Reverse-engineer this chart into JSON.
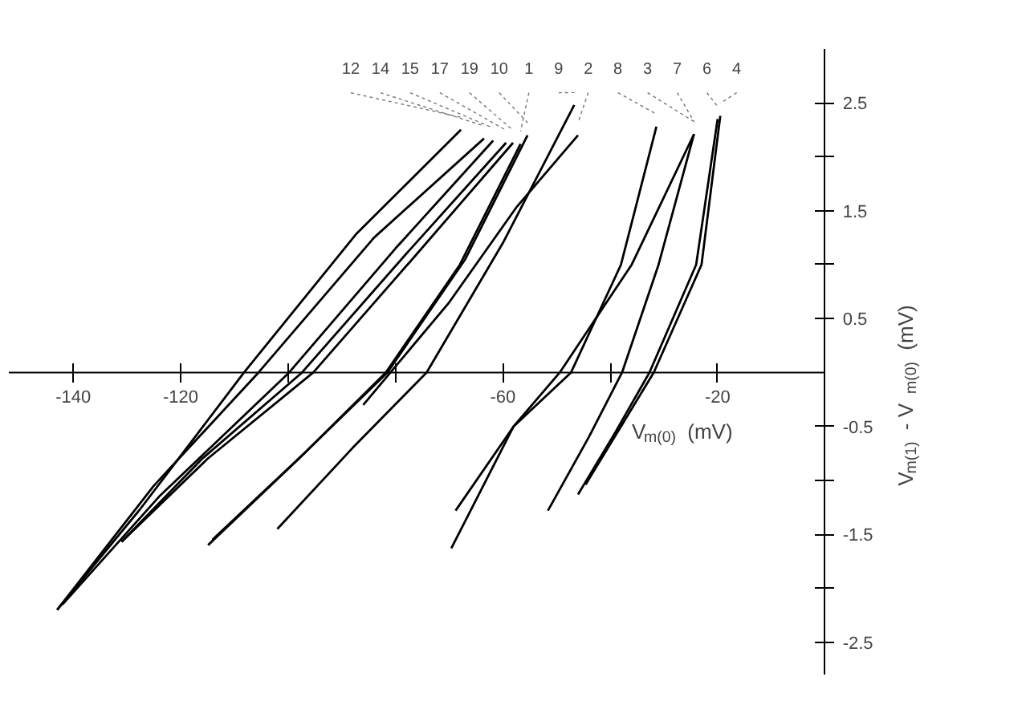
{
  "chart_data": {
    "type": "line",
    "xlabel": "V$_{m(0)}$ (mV)",
    "ylabel": "V$_{m(1)}$ - V$_{m(0)}$ (mV)",
    "xlim": [
      -152,
      0
    ],
    "ylim": [
      -2.8,
      3.0
    ],
    "xticks": [
      -140,
      -120,
      {
        "value": -100,
        "label": null
      },
      {
        "value": -80,
        "label": null
      },
      -60,
      {
        "value": -40,
        "label": null
      },
      -20
    ],
    "yticks": [
      {
        "value": -2.5,
        "label": "-2.5"
      },
      {
        "value": -2.0,
        "label": null
      },
      {
        "value": -1.5,
        "label": "-1.5"
      },
      {
        "value": -1.0,
        "label": null
      },
      {
        "value": -0.5,
        "label": "-0.5"
      },
      {
        "value": 0.5,
        "label": "0.5"
      },
      {
        "value": 1.0,
        "label": null
      },
      {
        "value": 1.5,
        "label": "1.5"
      },
      {
        "value": 2.0,
        "label": null
      },
      {
        "value": 2.5,
        "label": "2.5"
      }
    ],
    "grid": false,
    "marker": "none",
    "line_style": "solid",
    "series": [
      {
        "name": "12",
        "color": "#000000",
        "x": [
          -143,
          -127.6,
          -108.2,
          -87.2,
          -67.8
        ],
        "values": [
          -2.2,
          -1.27,
          0,
          1.29,
          2.25
        ]
      },
      {
        "name": "14",
        "color": "#000000",
        "x": [
          -143,
          -125,
          -105.5,
          -84,
          -63.5
        ],
        "values": [
          -2.2,
          -1.05,
          0,
          1.25,
          2.17
        ]
      },
      {
        "name": "15",
        "color": "#000000",
        "x": [
          -142,
          -124,
          -99.8,
          -80,
          -61.8
        ],
        "values": [
          -2.15,
          -1.15,
          0,
          1.15,
          2.15
        ]
      },
      {
        "name": "17",
        "color": "#000000",
        "x": [
          -131,
          -116,
          -97.4,
          -78,
          -59.4
        ],
        "values": [
          -1.57,
          -0.8,
          0,
          1.1,
          2.13
        ]
      },
      {
        "name": "19",
        "color": "#000000",
        "x": [
          -131,
          -115,
          -95.3,
          -76,
          -58.1
        ],
        "values": [
          -1.57,
          -0.8,
          0,
          1.1,
          2.13
        ]
      },
      {
        "name": "10",
        "color": "#000000",
        "x": [
          -114.1,
          -97,
          -81.5,
          -67,
          -55.4
        ],
        "values": [
          -1.55,
          -0.75,
          0,
          1.05,
          2.2
        ]
      },
      {
        "name": "1",
        "color": "#000000",
        "x": [
          -114.9,
          -98,
          -81.8,
          -68,
          -56.7
        ],
        "values": [
          -1.6,
          -0.8,
          0,
          1.0,
          2.12
        ]
      },
      {
        "name": "9",
        "color": "#000000",
        "x": [
          -102,
          -88,
          -74.2,
          -60,
          -46.7
        ],
        "values": [
          -1.45,
          -0.7,
          0,
          1.2,
          2.48
        ]
      },
      {
        "name": "2",
        "color": "#000000",
        "x": [
          -86,
          -70,
          -57.5,
          -46
        ],
        "values": [
          -0.3,
          0.65,
          1.53,
          2.2
        ]
      },
      {
        "name": "8",
        "color": "#000000",
        "x": [
          -68.8,
          -58,
          -47.3,
          -38,
          -31.4
        ],
        "values": [
          -1.28,
          -0.5,
          0,
          1.0,
          2.28
        ]
      },
      {
        "name": "3",
        "color": "#000000",
        "x": [
          -69.6,
          -58,
          -49.4,
          -36,
          -24.4
        ],
        "values": [
          -1.63,
          -0.5,
          0,
          1.0,
          2.21
        ]
      },
      {
        "name": "7",
        "color": "#000000",
        "x": [
          -51.6,
          -44,
          -37.8,
          -31,
          -24.4
        ],
        "values": [
          -1.28,
          -0.6,
          0,
          1.0,
          2.21
        ]
      },
      {
        "name": "6",
        "color": "#000000",
        "x": [
          -46,
          -39,
          -32.7,
          -24,
          -20
        ],
        "values": [
          -1.13,
          -0.55,
          0,
          1.0,
          2.35
        ]
      },
      {
        "name": "4",
        "color": "#000000",
        "x": [
          -44.6,
          -38,
          -31.9,
          -23,
          -19.5
        ],
        "values": [
          -1.04,
          -0.5,
          0,
          1.0,
          2.38
        ]
      }
    ]
  }
}
